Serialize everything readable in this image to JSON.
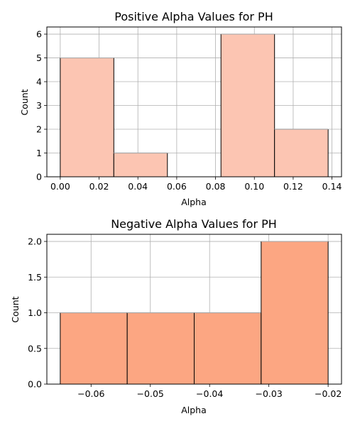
{
  "chart_data": [
    {
      "type": "bar",
      "title": "Positive Alpha Values for PH",
      "xlabel": "Alpha",
      "ylabel": "Count",
      "bins": [
        {
          "start": 0.0,
          "end": 0.0276,
          "count": 5
        },
        {
          "start": 0.0276,
          "end": 0.0552,
          "count": 1
        },
        {
          "start": 0.0552,
          "end": 0.0828,
          "count": 0
        },
        {
          "start": 0.0828,
          "end": 0.1104,
          "count": 6
        },
        {
          "start": 0.1104,
          "end": 0.138,
          "count": 2
        }
      ],
      "xlim": [
        -0.0069,
        0.1449
      ],
      "ylim": [
        0,
        6.3
      ],
      "xticks": [
        0.0,
        0.02,
        0.04,
        0.06,
        0.08,
        0.1,
        0.12,
        0.14
      ],
      "xtick_labels": [
        "0.00",
        "0.02",
        "0.04",
        "0.06",
        "0.08",
        "0.10",
        "0.12",
        "0.14"
      ],
      "yticks": [
        0,
        1,
        2,
        3,
        4,
        5,
        6
      ],
      "ytick_labels": [
        "0",
        "1",
        "2",
        "3",
        "4",
        "5",
        "6"
      ],
      "grid": true,
      "bar_color": "#fcc5b2",
      "edge_color": "#000000"
    },
    {
      "type": "bar",
      "title": "Negative Alpha Values for PH",
      "xlabel": "Alpha",
      "ylabel": "Count",
      "bins": [
        {
          "start": -0.0652,
          "end": -0.0539,
          "count": 1
        },
        {
          "start": -0.0539,
          "end": -0.0426,
          "count": 1
        },
        {
          "start": -0.0426,
          "end": -0.0313,
          "count": 1
        },
        {
          "start": -0.0313,
          "end": -0.02,
          "count": 2
        }
      ],
      "xlim": [
        -0.06746,
        -0.01774
      ],
      "ylim": [
        0,
        2.1
      ],
      "xticks": [
        -0.06,
        -0.05,
        -0.04,
        -0.03,
        -0.02
      ],
      "xtick_labels": [
        "−0.06",
        "−0.05",
        "−0.04",
        "−0.03",
        "−0.02"
      ],
      "yticks": [
        0.0,
        0.5,
        1.0,
        1.5,
        2.0
      ],
      "ytick_labels": [
        "0.0",
        "0.5",
        "1.0",
        "1.5",
        "2.0"
      ],
      "grid": true,
      "bar_color": "#fca682",
      "edge_color": "#000000"
    }
  ]
}
